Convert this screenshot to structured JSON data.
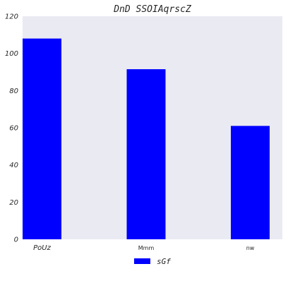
{
  "chart_data": {
    "type": "bar",
    "title": "DnD SSOIAqrscZ",
    "categories": [
      "PoUz",
      "Mmm",
      "nw"
    ],
    "series": [
      {
        "name": "sGf",
        "values": [
          108,
          91.5,
          61
        ],
        "color": "#0000ff"
      }
    ],
    "ylim": [
      0,
      120
    ],
    "yticks": [
      "0",
      "20",
      "40",
      "60",
      "80",
      "100",
      "120"
    ],
    "xlabel": "",
    "ylabel": "",
    "grid": false,
    "legend": "bottom-center",
    "plot_background": "#eaeaf2"
  }
}
